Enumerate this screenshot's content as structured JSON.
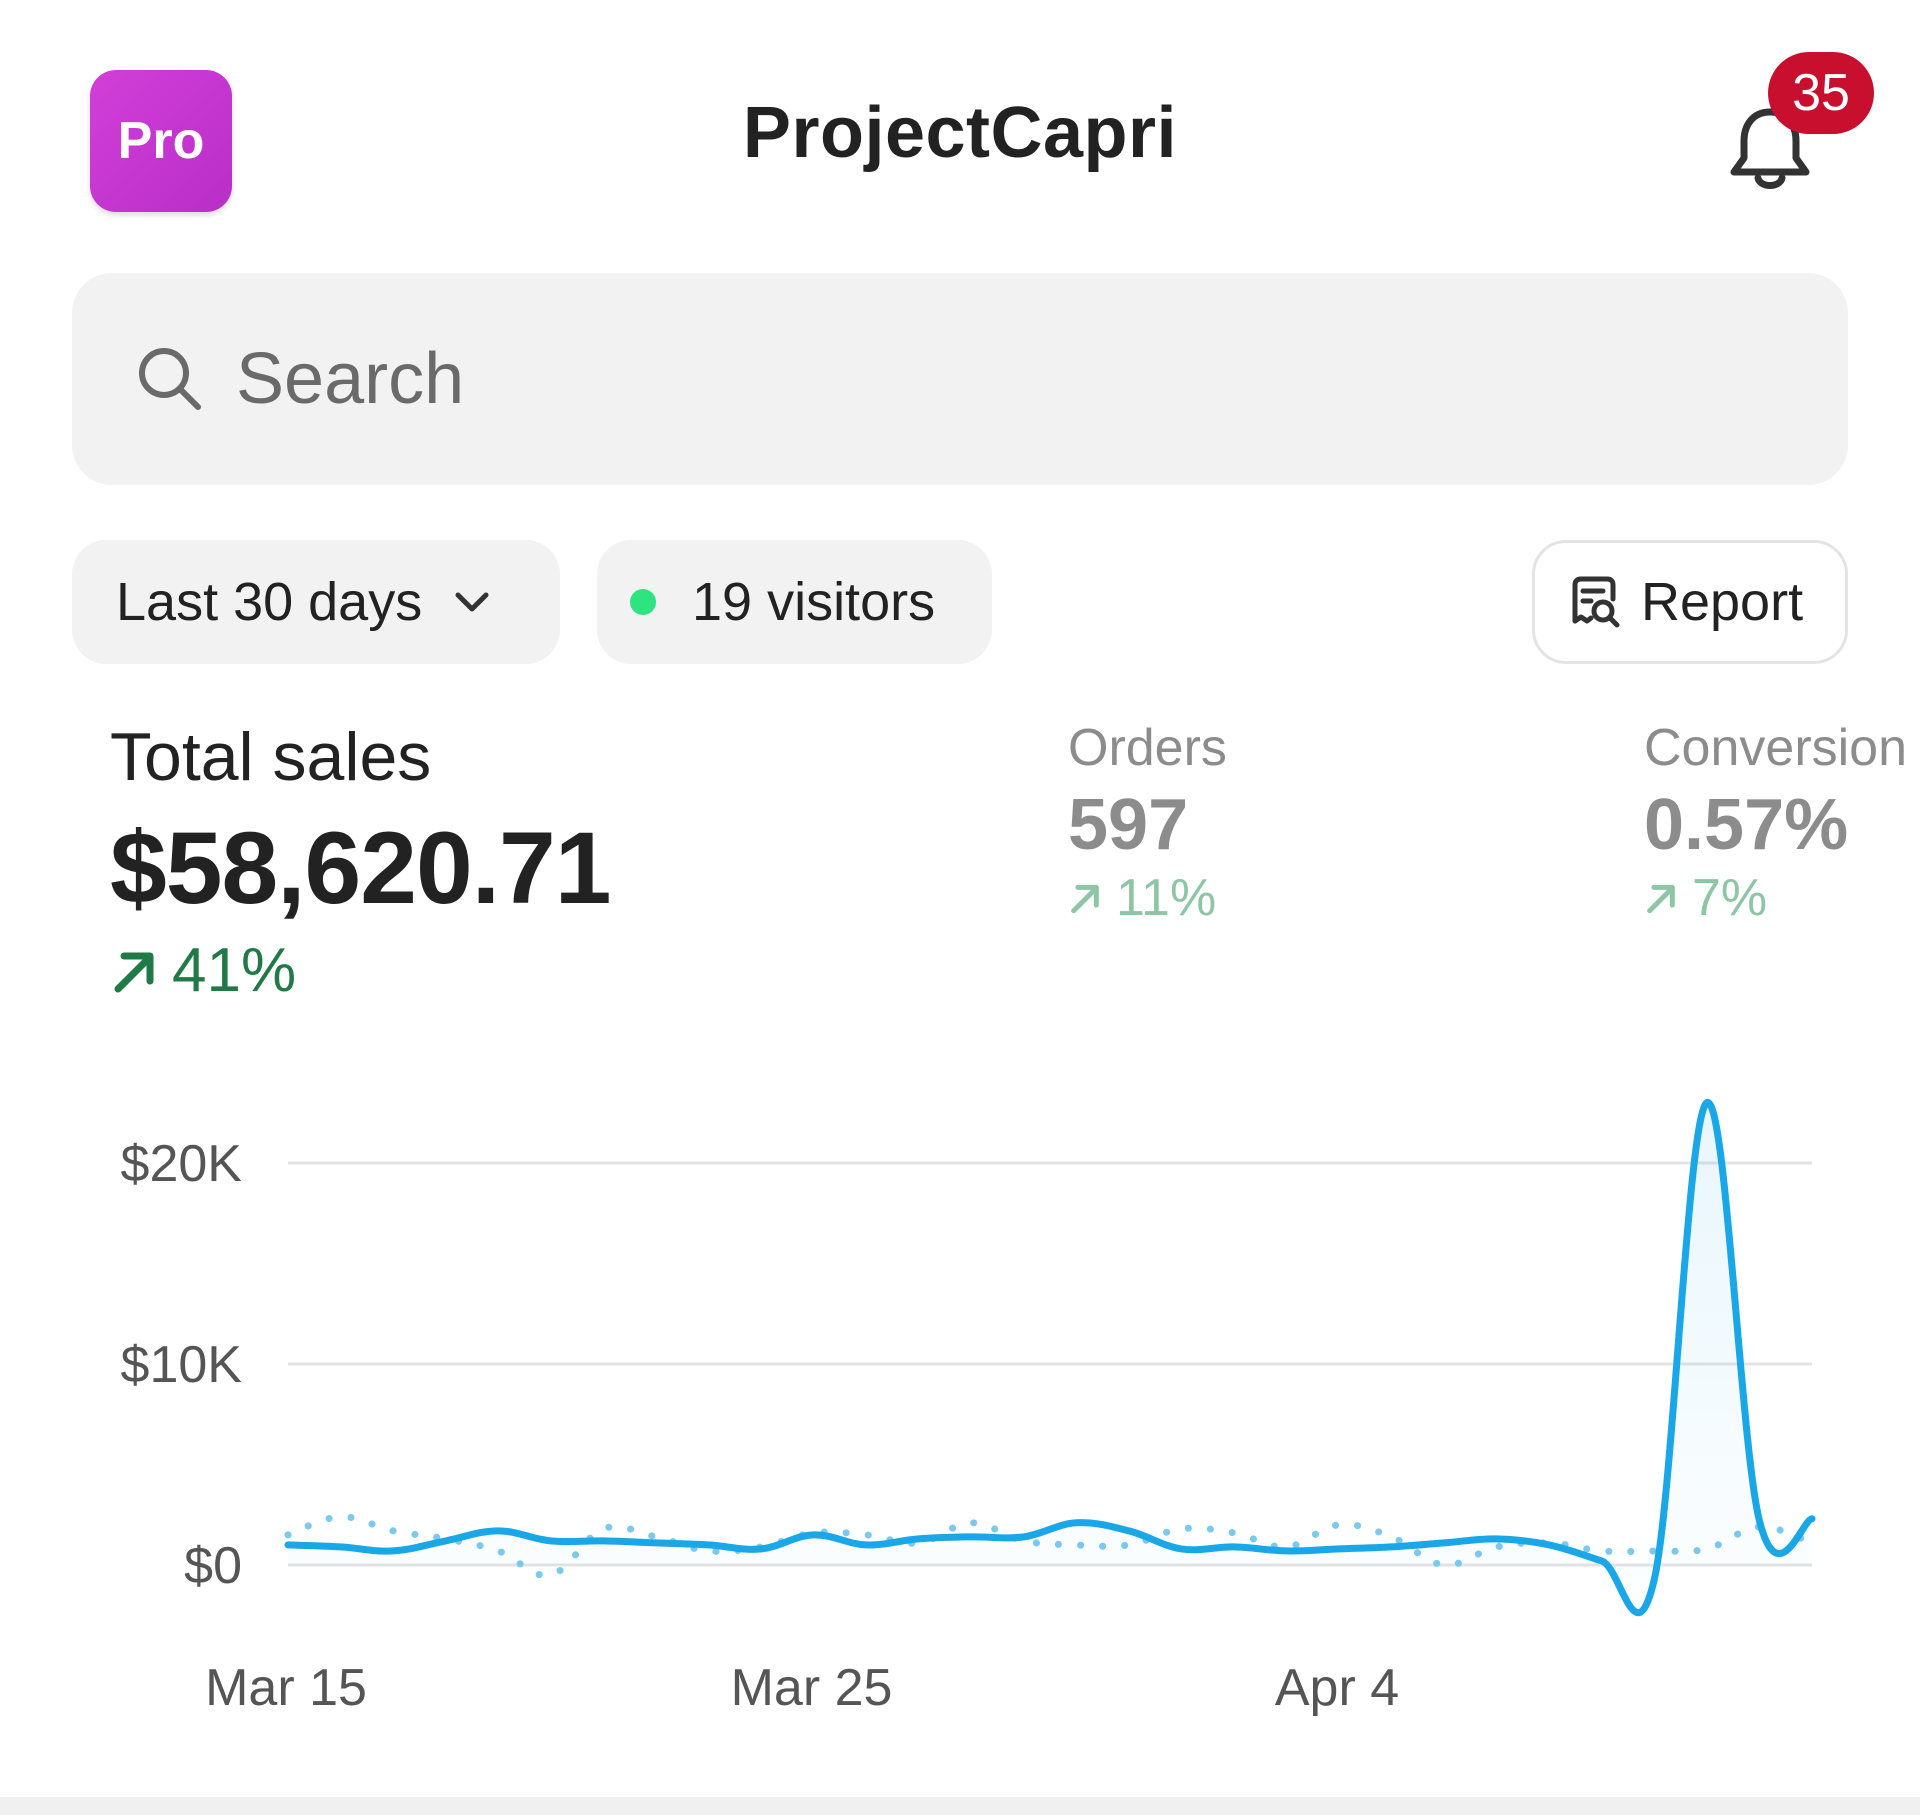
{
  "header": {
    "badge": "Pro",
    "title": "ProjectCapri",
    "notifications_count": "35"
  },
  "search": {
    "placeholder": "Search"
  },
  "filters": {
    "period": "Last 30 days",
    "visitors": "19 visitors",
    "report_label": "Report"
  },
  "metrics": {
    "total_sales": {
      "label": "Total sales",
      "value": "$58,620.71",
      "change": "41%"
    },
    "orders": {
      "label": "Orders",
      "value": "597",
      "change": "11%"
    },
    "conversion": {
      "label": "Conversion",
      "value": "0.57%",
      "change": "7%"
    }
  },
  "colors": {
    "accent_line": "#1aa7e8",
    "pro_badge": "#c832d2",
    "notification": "#c8102e",
    "positive": "#1f7a46",
    "online_dot": "#2ee47f"
  },
  "chart_data": {
    "type": "line",
    "y_tick_labels": [
      "$20K",
      "$10K",
      "$0"
    ],
    "y_ticks": [
      20000,
      10000,
      0
    ],
    "x_tick_labels": [
      "Mar 15",
      "Mar 25",
      "Apr 4"
    ],
    "ylim": [
      -1500,
      24000
    ],
    "grid": true,
    "series": [
      {
        "style": "solid",
        "values": [
          1000,
          900,
          700,
          1200,
          1700,
          1200,
          1200,
          1100,
          1000,
          800,
          1500,
          1000,
          1300,
          1400,
          1400,
          2100,
          1700,
          800,
          900,
          700,
          800,
          900,
          1100,
          1300,
          1000,
          200,
          -700,
          23000,
          2200,
          2300
        ]
      },
      {
        "style": "dotted",
        "values": [
          1500,
          2400,
          1700,
          1300,
          700,
          -500,
          1800,
          1400,
          700,
          900,
          1600,
          1500,
          1100,
          2100,
          1200,
          1000,
          1000,
          1800,
          1600,
          900,
          2000,
          1400,
          0,
          900,
          1100,
          700,
          700,
          800,
          1900,
          1100
        ]
      }
    ]
  }
}
